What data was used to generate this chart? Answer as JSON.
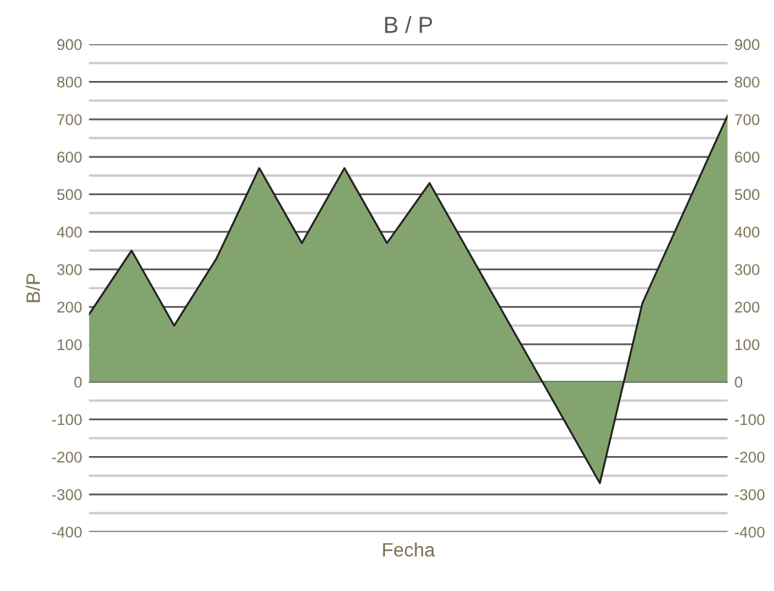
{
  "chart_data": {
    "type": "area",
    "title": "B / P",
    "xlabel": "Fecha",
    "ylabel": "B/P",
    "categories": [
      null,
      null,
      null,
      null,
      null,
      null,
      null,
      null,
      null,
      null,
      null,
      null,
      null,
      null,
      null,
      null
    ],
    "series": [
      {
        "color": "#84a46f",
        "values": [
          180,
          350,
          150,
          330,
          570,
          370,
          570,
          370,
          530,
          330,
          130,
          -70,
          -270,
          210,
          460,
          710
        ]
      }
    ],
    "ylim": [
      -400,
      900
    ],
    "yticks": [
      -400,
      {
        "value": -350,
        "label": null
      },
      -300,
      {
        "value": -250,
        "label": null
      },
      -200,
      {
        "value": -150,
        "label": null
      },
      -100,
      {
        "value": -50,
        "label": null
      },
      0,
      {
        "value": 50,
        "label": null
      },
      100,
      {
        "value": 150,
        "label": null
      },
      200,
      {
        "value": 250,
        "label": null
      },
      300,
      {
        "value": 350,
        "label": null
      },
      400,
      {
        "value": 450,
        "label": null
      },
      500,
      {
        "value": 550,
        "label": null
      },
      600,
      {
        "value": 650,
        "label": null
      },
      700,
      {
        "value": 750,
        "label": null
      },
      800,
      {
        "value": 850,
        "label": null
      },
      900
    ],
    "y2lim": [
      -400,
      900
    ],
    "y2ticks": [
      -400,
      -300,
      -200,
      -100,
      0,
      100,
      200,
      300,
      400,
      500,
      600,
      700,
      800,
      900
    ],
    "grid": "y",
    "legend": false
  }
}
